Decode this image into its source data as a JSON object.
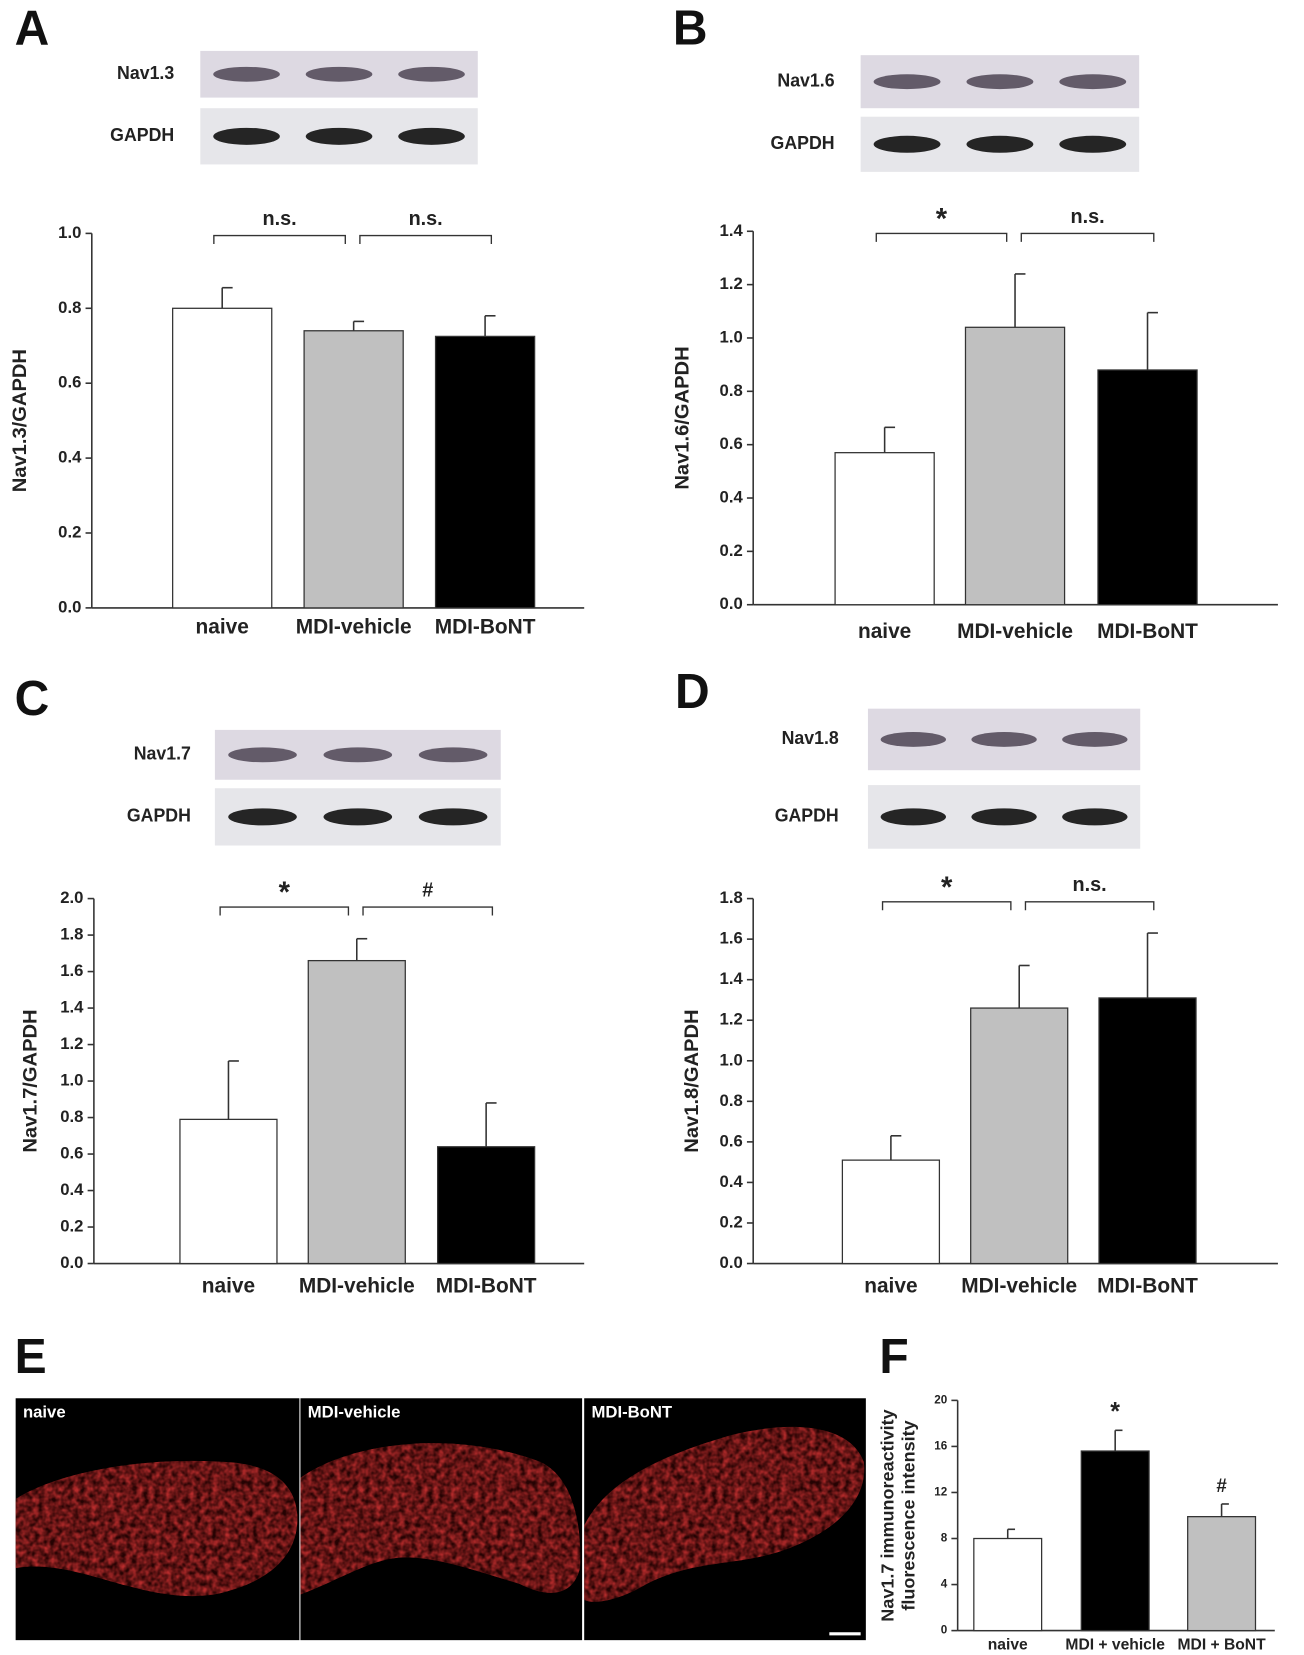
{
  "chart_data": [
    {
      "type": "bar",
      "letter": "A",
      "blot_labels": [
        "Nav1.3",
        "GAPDH"
      ],
      "ylabel": "Nav1.3/GAPDH",
      "categories": [
        "naive",
        "MDI-vehicle",
        "MDI-BoNT"
      ],
      "values": [
        0.8,
        0.74,
        0.725
      ],
      "errors": [
        0.055,
        0.025,
        0.055
      ],
      "colors": [
        "#ffffff",
        "#c0c0c0",
        "#000000"
      ],
      "ylim": [
        0,
        1
      ],
      "yticks": [
        {
          "value": 0,
          "label": "0.0"
        },
        0.2,
        0.4,
        0.6,
        0.8,
        {
          "value": 1,
          "label": "1.0"
        }
      ],
      "brackets": [
        {
          "text": "n.s.",
          "from": "naive",
          "to": "MDI-vehicle"
        },
        {
          "text": "n.s.",
          "from": "MDI-vehicle",
          "to": "MDI-BoNT"
        }
      ]
    },
    {
      "type": "bar",
      "letter": "B",
      "blot_labels": [
        "Nav1.6",
        "GAPDH"
      ],
      "ylabel": "Nav1.6/GAPDH",
      "categories": [
        "naive",
        "MDI-vehicle",
        "MDI-BoNT"
      ],
      "values": [
        0.57,
        1.04,
        0.88
      ],
      "errors": [
        0.095,
        0.2,
        0.215
      ],
      "colors": [
        "#ffffff",
        "#c0c0c0",
        "#000000"
      ],
      "ylim": [
        0,
        1.4
      ],
      "yticks": [
        {
          "value": 0,
          "label": "0.0"
        },
        0.2,
        0.4,
        0.6,
        0.8,
        {
          "value": 1,
          "label": "1.0"
        },
        1.2,
        1.4
      ],
      "brackets": [
        {
          "text": "*",
          "from": "naive",
          "to": "MDI-vehicle"
        },
        {
          "text": "n.s.",
          "from": "MDI-vehicle",
          "to": "MDI-BoNT"
        }
      ]
    },
    {
      "type": "bar",
      "letter": "C",
      "blot_labels": [
        "Nav1.7",
        "GAPDH"
      ],
      "ylabel": "Nav1.7/GAPDH",
      "categories": [
        "naive",
        "MDI-vehicle",
        "MDI-BoNT"
      ],
      "values": [
        0.79,
        1.66,
        0.64
      ],
      "errors": [
        0.32,
        0.12,
        0.24
      ],
      "colors": [
        "#ffffff",
        "#c0c0c0",
        "#000000"
      ],
      "ylim": [
        0,
        2
      ],
      "yticks": [
        {
          "value": 0,
          "label": "0.0"
        },
        0.2,
        0.4,
        0.6,
        0.8,
        {
          "value": 1,
          "label": "1.0"
        },
        1.2,
        1.4,
        1.6,
        1.8,
        {
          "value": 2,
          "label": "2.0"
        }
      ],
      "brackets": [
        {
          "text": "*",
          "from": "naive",
          "to": "MDI-vehicle"
        },
        {
          "text": "#",
          "from": "MDI-vehicle",
          "to": "MDI-BoNT"
        }
      ]
    },
    {
      "type": "bar",
      "letter": "D",
      "blot_labels": [
        "Nav1.8",
        "GAPDH"
      ],
      "ylabel": "Nav1.8/GAPDH",
      "categories": [
        "naive",
        "MDI-vehicle",
        "MDI-BoNT"
      ],
      "values": [
        0.51,
        1.26,
        1.31
      ],
      "errors": [
        0.12,
        0.21,
        0.32
      ],
      "colors": [
        "#ffffff",
        "#c0c0c0",
        "#000000"
      ],
      "ylim": [
        0,
        1.8
      ],
      "yticks": [
        {
          "value": 0,
          "label": "0.0"
        },
        0.2,
        0.4,
        0.6,
        0.8,
        {
          "value": 1,
          "label": "1.0"
        },
        1.2,
        1.4,
        1.6,
        1.8
      ],
      "brackets": [
        {
          "text": "*",
          "from": "naive",
          "to": "MDI-vehicle"
        },
        {
          "text": "n.s.",
          "from": "MDI-vehicle",
          "to": "MDI-BoNT"
        }
      ]
    },
    {
      "type": "bar",
      "letter": "F",
      "ylabel": [
        "Nav1.7 immunoreactivity",
        "fluorescence intensity"
      ],
      "categories": [
        "naive",
        "MDI + vehicle",
        "MDI + BoNT"
      ],
      "values": [
        8.0,
        15.6,
        9.9
      ],
      "errors": [
        0.8,
        1.8,
        1.1
      ],
      "colors": [
        "#ffffff",
        "#000000",
        "#c0c0c0"
      ],
      "ylim": [
        0,
        20
      ],
      "yticks": [
        0,
        4,
        8,
        12,
        16,
        20
      ],
      "annotations": [
        {
          "text": "*",
          "category": "MDI + vehicle"
        },
        {
          "text": "#",
          "category": "MDI + BoNT"
        }
      ]
    }
  ],
  "image_panel": {
    "letter": "E",
    "labels": [
      "naive",
      "MDI-vehicle",
      "MDI-BoNT"
    ]
  }
}
